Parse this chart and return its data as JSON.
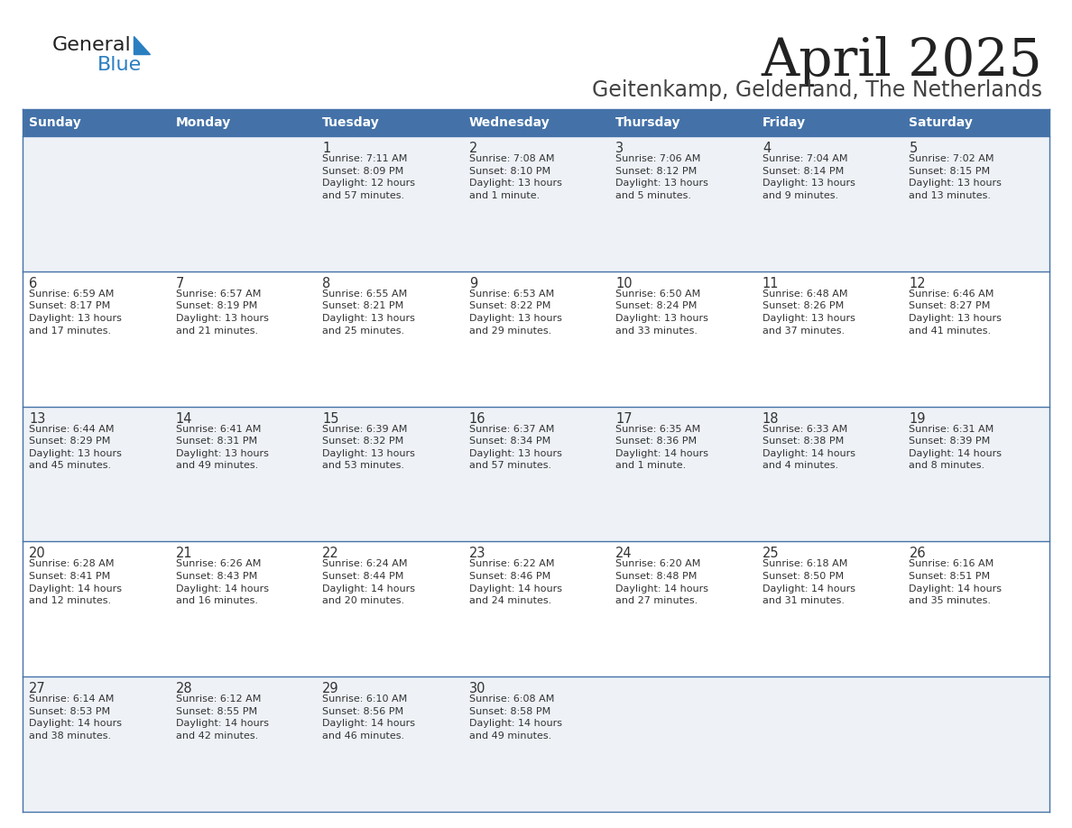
{
  "title": "April 2025",
  "subtitle": "Geitenkamp, Gelderland, The Netherlands",
  "days_of_week": [
    "Sunday",
    "Monday",
    "Tuesday",
    "Wednesday",
    "Thursday",
    "Friday",
    "Saturday"
  ],
  "header_bg": "#4472a8",
  "header_text_color": "#ffffff",
  "row_bg_light": "#eef2f7",
  "row_bg_white": "#ffffff",
  "cell_text_color": "#333333",
  "border_color": "#4472a8",
  "title_color": "#222222",
  "subtitle_color": "#444444",
  "logo_general_color": "#222222",
  "logo_blue_color": "#2a7fc1",
  "logo_triangle_color": "#2a7fc1",
  "calendar": [
    [
      {
        "day": null,
        "text": ""
      },
      {
        "day": null,
        "text": ""
      },
      {
        "day": 1,
        "text": "Sunrise: 7:11 AM\nSunset: 8:09 PM\nDaylight: 12 hours\nand 57 minutes."
      },
      {
        "day": 2,
        "text": "Sunrise: 7:08 AM\nSunset: 8:10 PM\nDaylight: 13 hours\nand 1 minute."
      },
      {
        "day": 3,
        "text": "Sunrise: 7:06 AM\nSunset: 8:12 PM\nDaylight: 13 hours\nand 5 minutes."
      },
      {
        "day": 4,
        "text": "Sunrise: 7:04 AM\nSunset: 8:14 PM\nDaylight: 13 hours\nand 9 minutes."
      },
      {
        "day": 5,
        "text": "Sunrise: 7:02 AM\nSunset: 8:15 PM\nDaylight: 13 hours\nand 13 minutes."
      }
    ],
    [
      {
        "day": 6,
        "text": "Sunrise: 6:59 AM\nSunset: 8:17 PM\nDaylight: 13 hours\nand 17 minutes."
      },
      {
        "day": 7,
        "text": "Sunrise: 6:57 AM\nSunset: 8:19 PM\nDaylight: 13 hours\nand 21 minutes."
      },
      {
        "day": 8,
        "text": "Sunrise: 6:55 AM\nSunset: 8:21 PM\nDaylight: 13 hours\nand 25 minutes."
      },
      {
        "day": 9,
        "text": "Sunrise: 6:53 AM\nSunset: 8:22 PM\nDaylight: 13 hours\nand 29 minutes."
      },
      {
        "day": 10,
        "text": "Sunrise: 6:50 AM\nSunset: 8:24 PM\nDaylight: 13 hours\nand 33 minutes."
      },
      {
        "day": 11,
        "text": "Sunrise: 6:48 AM\nSunset: 8:26 PM\nDaylight: 13 hours\nand 37 minutes."
      },
      {
        "day": 12,
        "text": "Sunrise: 6:46 AM\nSunset: 8:27 PM\nDaylight: 13 hours\nand 41 minutes."
      }
    ],
    [
      {
        "day": 13,
        "text": "Sunrise: 6:44 AM\nSunset: 8:29 PM\nDaylight: 13 hours\nand 45 minutes."
      },
      {
        "day": 14,
        "text": "Sunrise: 6:41 AM\nSunset: 8:31 PM\nDaylight: 13 hours\nand 49 minutes."
      },
      {
        "day": 15,
        "text": "Sunrise: 6:39 AM\nSunset: 8:32 PM\nDaylight: 13 hours\nand 53 minutes."
      },
      {
        "day": 16,
        "text": "Sunrise: 6:37 AM\nSunset: 8:34 PM\nDaylight: 13 hours\nand 57 minutes."
      },
      {
        "day": 17,
        "text": "Sunrise: 6:35 AM\nSunset: 8:36 PM\nDaylight: 14 hours\nand 1 minute."
      },
      {
        "day": 18,
        "text": "Sunrise: 6:33 AM\nSunset: 8:38 PM\nDaylight: 14 hours\nand 4 minutes."
      },
      {
        "day": 19,
        "text": "Sunrise: 6:31 AM\nSunset: 8:39 PM\nDaylight: 14 hours\nand 8 minutes."
      }
    ],
    [
      {
        "day": 20,
        "text": "Sunrise: 6:28 AM\nSunset: 8:41 PM\nDaylight: 14 hours\nand 12 minutes."
      },
      {
        "day": 21,
        "text": "Sunrise: 6:26 AM\nSunset: 8:43 PM\nDaylight: 14 hours\nand 16 minutes."
      },
      {
        "day": 22,
        "text": "Sunrise: 6:24 AM\nSunset: 8:44 PM\nDaylight: 14 hours\nand 20 minutes."
      },
      {
        "day": 23,
        "text": "Sunrise: 6:22 AM\nSunset: 8:46 PM\nDaylight: 14 hours\nand 24 minutes."
      },
      {
        "day": 24,
        "text": "Sunrise: 6:20 AM\nSunset: 8:48 PM\nDaylight: 14 hours\nand 27 minutes."
      },
      {
        "day": 25,
        "text": "Sunrise: 6:18 AM\nSunset: 8:50 PM\nDaylight: 14 hours\nand 31 minutes."
      },
      {
        "day": 26,
        "text": "Sunrise: 6:16 AM\nSunset: 8:51 PM\nDaylight: 14 hours\nand 35 minutes."
      }
    ],
    [
      {
        "day": 27,
        "text": "Sunrise: 6:14 AM\nSunset: 8:53 PM\nDaylight: 14 hours\nand 38 minutes."
      },
      {
        "day": 28,
        "text": "Sunrise: 6:12 AM\nSunset: 8:55 PM\nDaylight: 14 hours\nand 42 minutes."
      },
      {
        "day": 29,
        "text": "Sunrise: 6:10 AM\nSunset: 8:56 PM\nDaylight: 14 hours\nand 46 minutes."
      },
      {
        "day": 30,
        "text": "Sunrise: 6:08 AM\nSunset: 8:58 PM\nDaylight: 14 hours\nand 49 minutes."
      },
      {
        "day": null,
        "text": ""
      },
      {
        "day": null,
        "text": ""
      },
      {
        "day": null,
        "text": ""
      }
    ]
  ]
}
